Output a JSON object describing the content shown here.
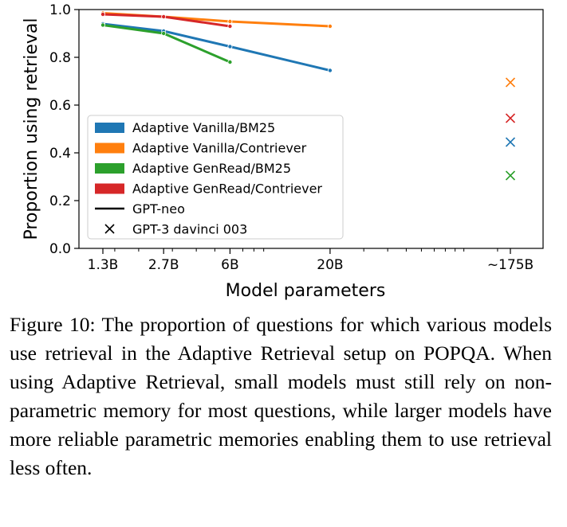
{
  "chart_data": {
    "type": "line",
    "xlabel": "Model parameters",
    "ylabel": "Proportion using retrieval",
    "ylim": [
      0,
      1.0
    ],
    "yticks": [
      0.0,
      0.2,
      0.4,
      0.6,
      0.8,
      1.0
    ],
    "ytick_labels": [
      "0.0",
      "0.2",
      "0.4",
      "0.6",
      "0.8",
      "1.0"
    ],
    "categories": [
      "1.3B",
      "2.7B",
      "6B",
      "20B",
      "~175B"
    ],
    "series": [
      {
        "name": "Adaptive Vanilla/BM25",
        "color": "#1f77b4",
        "model": "GPT-neo",
        "x": [
          "1.3B",
          "2.7B",
          "6B",
          "20B"
        ],
        "values": [
          0.94,
          0.91,
          0.845,
          0.745
        ]
      },
      {
        "name": "Adaptive Vanilla/Contriever",
        "color": "#ff7f0e",
        "model": "GPT-neo",
        "x": [
          "1.3B",
          "2.7B",
          "6B",
          "20B"
        ],
        "values": [
          0.985,
          0.97,
          0.95,
          0.93
        ]
      },
      {
        "name": "Adaptive GenRead/BM25",
        "color": "#2ca02c",
        "model": "GPT-neo",
        "x": [
          "1.3B",
          "2.7B",
          "6B"
        ],
        "values": [
          0.935,
          0.9,
          0.78
        ]
      },
      {
        "name": "Adaptive GenRead/Contriever",
        "color": "#d62728",
        "model": "GPT-neo",
        "x": [
          "1.3B",
          "2.7B",
          "6B"
        ],
        "values": [
          0.98,
          0.97,
          0.93
        ]
      }
    ],
    "gpt3_points": [
      {
        "series": "Adaptive Vanilla/Contriever",
        "x": "~175B",
        "value": 0.695,
        "color": "#ff7f0e"
      },
      {
        "series": "Adaptive GenRead/Contriever",
        "x": "~175B",
        "value": 0.545,
        "color": "#d62728"
      },
      {
        "series": "Adaptive Vanilla/BM25",
        "x": "~175B",
        "value": 0.445,
        "color": "#1f77b4"
      },
      {
        "series": "Adaptive GenRead/BM25",
        "x": "~175B",
        "value": 0.305,
        "color": "#2ca02c"
      }
    ],
    "legend": {
      "placement": "lower-left",
      "entries": [
        {
          "label": "Adaptive Vanilla/BM25",
          "color": "#1f77b4",
          "kind": "patch"
        },
        {
          "label": "Adaptive Vanilla/Contriever",
          "color": "#ff7f0e",
          "kind": "patch"
        },
        {
          "label": "Adaptive GenRead/BM25",
          "color": "#2ca02c",
          "kind": "patch"
        },
        {
          "label": "Adaptive GenRead/Contriever",
          "color": "#d62728",
          "kind": "patch"
        },
        {
          "label": "GPT-neo",
          "color": "#000000",
          "kind": "line"
        },
        {
          "label": "GPT-3 davinci 003",
          "color": "#000000",
          "kind": "cross"
        }
      ]
    }
  },
  "caption": {
    "prefix": "Figure 10: The proportion of questions for which various models use retrieval in the Adaptive Retrieval setup on ",
    "dataset_lead": "P",
    "dataset_small": "OP",
    "dataset_tail": "QA",
    "suffix": ". When using Adaptive Retrieval, small models must still rely on non-parametric memory for most questions, while larger models have more reliable parametric memories enabling them to use retrieval less often."
  }
}
